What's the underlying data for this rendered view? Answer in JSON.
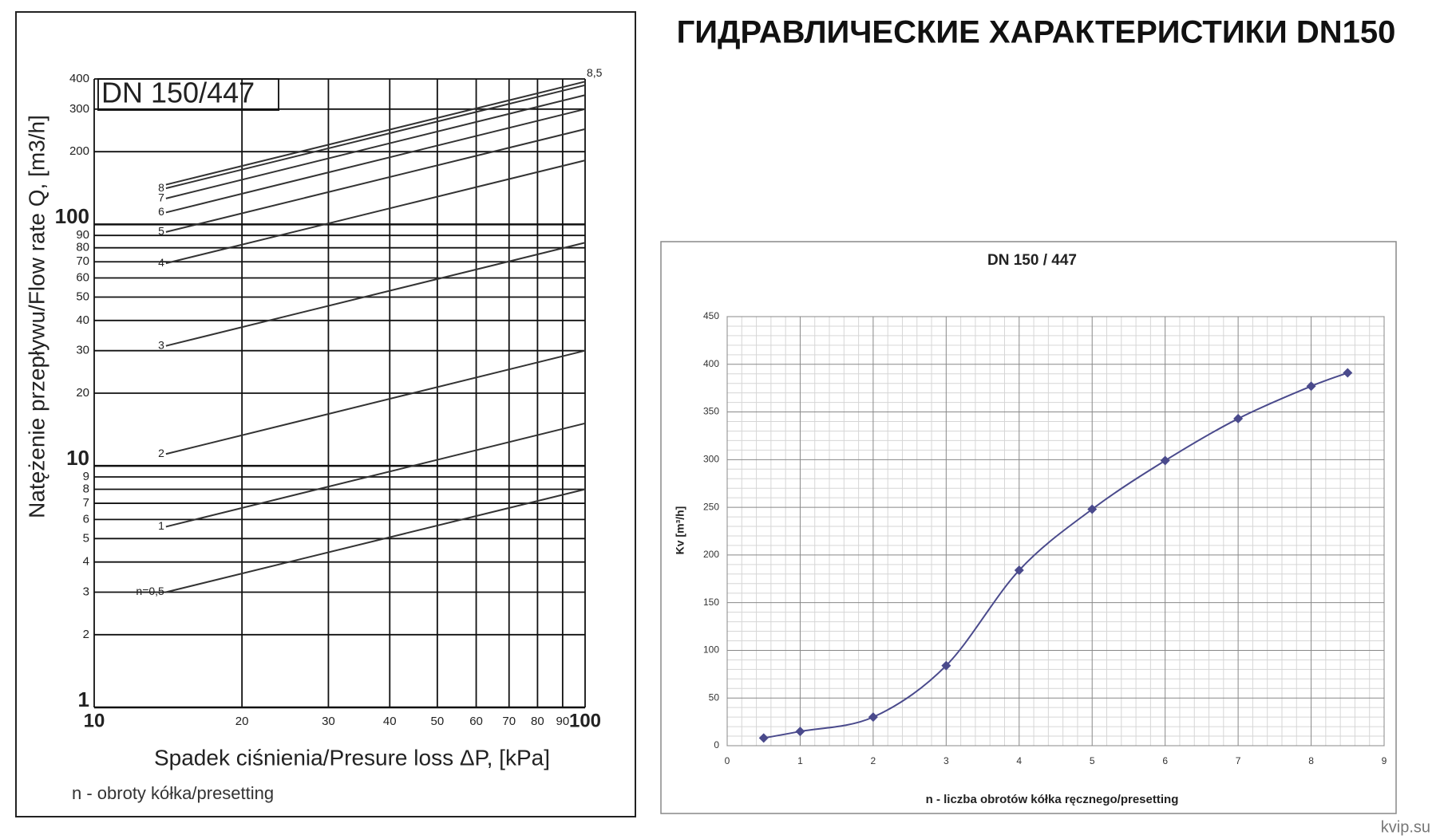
{
  "title": "ГИДРАВЛИЧЕСКИЕ ХАРАКТЕРИСТИКИ DN150",
  "watermark": "kvip.su",
  "chart_data": [
    {
      "type": "line",
      "log_x": true,
      "log_y": true,
      "box_label": "DN 150/447",
      "x_label": "Spadek ciśnienia/Presure loss ΔP, [kPa]",
      "y_label": "Natężenie przepływu/Flow rate Q, [m3/h]",
      "note": "n - obroty kółka/presetting",
      "xlim": [
        10,
        100
      ],
      "ylim": [
        1,
        400
      ],
      "xticks": [
        10,
        20,
        30,
        40,
        50,
        60,
        70,
        80,
        90,
        100
      ],
      "yticks": [
        1,
        2,
        3,
        4,
        5,
        6,
        7,
        8,
        9,
        10,
        20,
        30,
        40,
        50,
        60,
        70,
        80,
        90,
        100,
        200,
        300,
        400
      ],
      "grid": true,
      "color": "#333333",
      "series": [
        {
          "name": "n=0,5",
          "x": [
            14,
            100
          ],
          "values": [
            3.0,
            8
          ]
        },
        {
          "name": "1",
          "x": [
            14,
            100
          ],
          "values": [
            5.6,
            15
          ]
        },
        {
          "name": "2",
          "x": [
            14,
            100
          ],
          "values": [
            11.2,
            30
          ]
        },
        {
          "name": "3",
          "x": [
            14,
            100
          ],
          "values": [
            31.4,
            84
          ]
        },
        {
          "name": "4",
          "x": [
            14,
            100
          ],
          "values": [
            69,
            184
          ]
        },
        {
          "name": "5",
          "x": [
            14,
            100
          ],
          "values": [
            93,
            248
          ]
        },
        {
          "name": "6",
          "x": [
            14,
            100
          ],
          "values": [
            112,
            300
          ]
        },
        {
          "name": "7",
          "x": [
            14,
            100
          ],
          "values": [
            128,
            343
          ]
        },
        {
          "name": "8",
          "x": [
            14,
            100
          ],
          "values": [
            141,
            377
          ]
        },
        {
          "name": "8,5",
          "x": [
            14,
            100
          ],
          "values": [
            146,
            390
          ]
        }
      ]
    },
    {
      "type": "line",
      "title": "DN 150 / 447",
      "x_label": "n - liczba obrotów kółka ręcznego/presetting",
      "y_label": "Kv [m³/h]",
      "xlim": [
        0,
        9
      ],
      "ylim": [
        0,
        450
      ],
      "xticks": [
        0,
        1,
        2,
        3,
        4,
        5,
        6,
        7,
        8,
        9
      ],
      "yticks": [
        0,
        50,
        100,
        150,
        200,
        250,
        300,
        350,
        400,
        450
      ],
      "grid": true,
      "color": "#4a4a8c",
      "marker": "diamond",
      "x": [
        0.5,
        1,
        2,
        3,
        4,
        5,
        6,
        7,
        8,
        8.5
      ],
      "values": [
        8,
        15,
        30,
        84,
        184,
        248,
        299,
        343,
        377,
        391
      ]
    }
  ]
}
